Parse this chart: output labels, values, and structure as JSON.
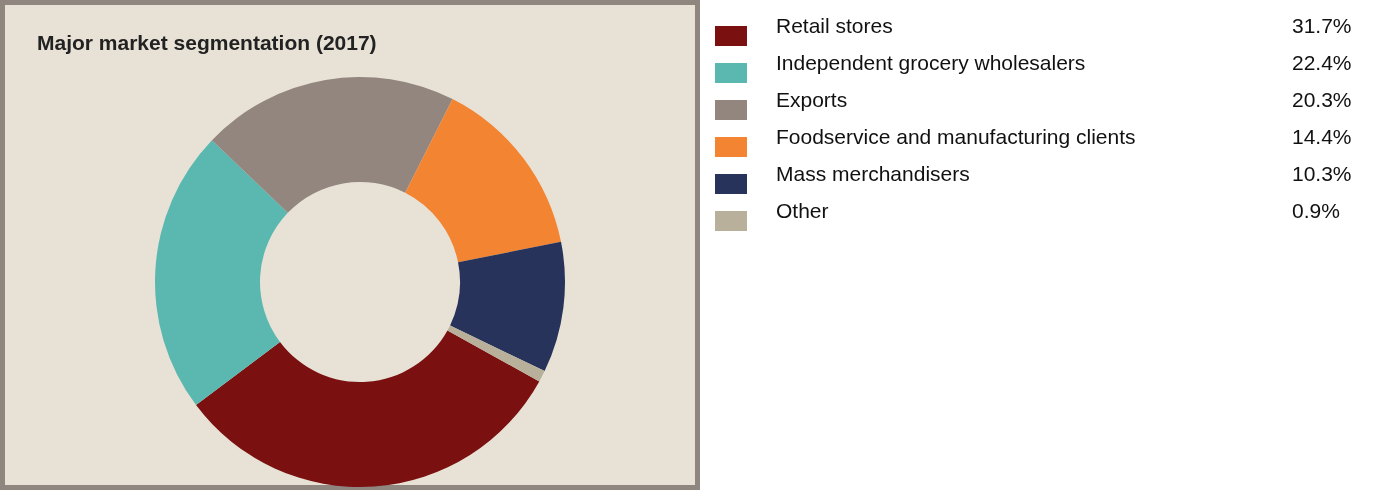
{
  "chart_data": {
    "type": "donut",
    "title": "Major market segmentation (2017)",
    "categories": [
      "Retail stores",
      "Independent grocery wholesalers",
      "Exports",
      "Foodservice and manufacturing clients",
      "Mass merchandisers",
      "Other"
    ],
    "values": [
      31.7,
      22.4,
      20.3,
      14.4,
      10.3,
      0.9
    ],
    "colors": [
      "#7a1010",
      "#5bb8b0",
      "#93867f",
      "#f28432",
      "#27335a",
      "#b8b09a"
    ],
    "value_labels": [
      "31.7%",
      "22.4%",
      "20.3%",
      "14.4%",
      "10.3%",
      "0.9%"
    ],
    "legend": "right"
  }
}
